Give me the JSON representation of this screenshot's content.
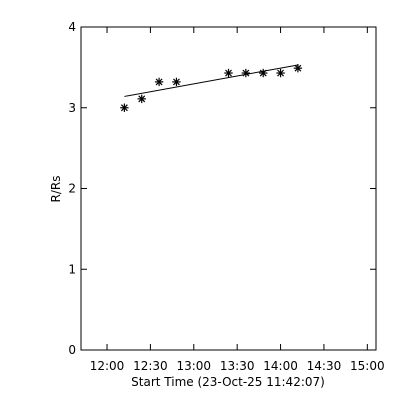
{
  "chart_data": {
    "type": "scatter",
    "title": "",
    "xlabel": "Start Time (23-Oct-25 11:42:07)",
    "ylabel": "R/Rs",
    "x_tick_labels": [
      "12:00",
      "12:30",
      "13:00",
      "13:30",
      "14:00",
      "14:30",
      "15:00"
    ],
    "x_tick_values": [
      "12:00",
      "12:30",
      "13:00",
      "13:30",
      "14:00",
      "14:30",
      "15:00"
    ],
    "x_range": [
      "11:42",
      "15:06"
    ],
    "y_tick_labels": [
      "0",
      "1",
      "2",
      "3",
      "4"
    ],
    "y_tick_values": [
      0,
      1,
      2,
      3,
      4
    ],
    "y_range": [
      0,
      4
    ],
    "grid": false,
    "marker_color": "#000000",
    "line_color": "#000000",
    "points": [
      {
        "x": "12:12",
        "y": 3.0
      },
      {
        "x": "12:24",
        "y": 3.11
      },
      {
        "x": "12:36",
        "y": 3.32
      },
      {
        "x": "12:48",
        "y": 3.32
      },
      {
        "x": "13:24",
        "y": 3.43
      },
      {
        "x": "13:36",
        "y": 3.43
      },
      {
        "x": "13:48",
        "y": 3.43
      },
      {
        "x": "14:00",
        "y": 3.43
      },
      {
        "x": "14:12",
        "y": 3.49
      }
    ],
    "fit_line": {
      "start": {
        "x": "12:12",
        "y": 3.14
      },
      "end": {
        "x": "14:12",
        "y": 3.53
      }
    }
  }
}
